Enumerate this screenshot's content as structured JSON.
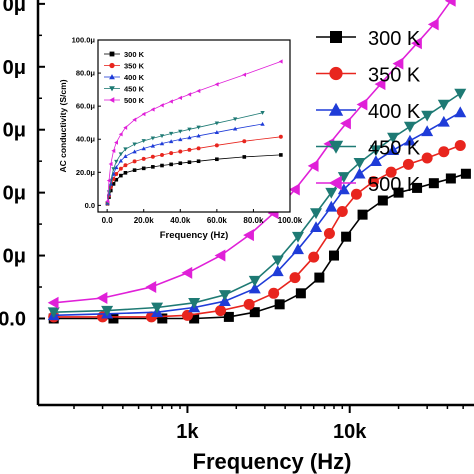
{
  "chart_data": [
    {
      "type": "line",
      "xlabel": "Frequency (Hz)",
      "ylabel": "",
      "x_scale": "log",
      "xlim": [
        120,
        60000
      ],
      "ylim": [
        -5.5e-06,
        2.05e-05
      ],
      "x_tick_labels": [
        "1k",
        "10k"
      ],
      "x_tick_values": [
        1000,
        10000
      ],
      "y_tick_labels": [
        "0.0",
        "0μ",
        "0μ",
        "0μ",
        "0μ",
        "0μ"
      ],
      "y_tick_values": [
        0,
        4e-06,
        8e-06,
        1.2e-05,
        1.6e-05,
        2e-05
      ],
      "legend_position": "top-right",
      "series": [
        {
          "name": "300 K",
          "color": "#000000",
          "marker": "square",
          "x": [
            150,
            350,
            700,
            1100,
            1800,
            2600,
            3700,
            5000,
            6500,
            8000,
            9500,
            12000,
            16000,
            20000,
            26000,
            33000,
            42000,
            52000
          ],
          "y": [
            0.0,
            0.0,
            0.0,
            0.0,
            1e-07,
            4e-07,
            9e-07,
            1.6e-06,
            2.6e-06,
            4e-06,
            5.2e-06,
            6.6e-06,
            7.5e-06,
            8e-06,
            8.3e-06,
            8.6e-06,
            8.9e-06,
            9.2e-06
          ]
        },
        {
          "name": "350 K",
          "color": "#e8251e",
          "marker": "circle",
          "x": [
            150,
            300,
            600,
            1000,
            1600,
            2400,
            3400,
            4600,
            6000,
            7500,
            9000,
            11000,
            14000,
            18000,
            23000,
            30000,
            38000,
            48000
          ],
          "y": [
            1e-07,
            1e-07,
            1e-07,
            2e-07,
            5e-07,
            9e-07,
            1.6e-06,
            2.6e-06,
            3.9e-06,
            5.4e-06,
            6.8e-06,
            7.9e-06,
            8.7e-06,
            9.3e-06,
            9.8e-06,
            1.02e-05,
            1.06e-05,
            1.1e-05
          ]
        },
        {
          "name": "400 K",
          "color": "#1f3cd8",
          "marker": "triangle-up",
          "x": [
            150,
            320,
            650,
            1100,
            1700,
            2600,
            3600,
            4800,
            6200,
            7700,
            9200,
            11500,
            14500,
            18500,
            23500,
            30000,
            38000,
            48000
          ],
          "y": [
            2e-07,
            3e-07,
            4e-07,
            7e-07,
            1.1e-06,
            1.9e-06,
            3e-06,
            4.4e-06,
            5.8e-06,
            7.1e-06,
            8.2e-06,
            9.2e-06,
            1e-05,
            1.07e-05,
            1.13e-05,
            1.19e-05,
            1.25e-05,
            1.31e-05
          ]
        },
        {
          "name": "450 K",
          "color": "#1e7a74",
          "marker": "triangle-down",
          "x": [
            150,
            320,
            650,
            1100,
            1700,
            2600,
            3600,
            4800,
            6200,
            7700,
            9200,
            11500,
            14500,
            18500,
            23500,
            30000,
            38000,
            48000
          ],
          "y": [
            4e-07,
            5e-07,
            7e-07,
            1e-06,
            1.5e-06,
            2.4e-06,
            3.7e-06,
            5.2e-06,
            6.7e-06,
            8e-06,
            9e-06,
            9.9e-06,
            1.07e-05,
            1.15e-05,
            1.22e-05,
            1.29e-05,
            1.36e-05,
            1.43e-05
          ]
        },
        {
          "name": "500 K",
          "color": "#e020d8",
          "marker": "triangle-left",
          "x": [
            150,
            300,
            600,
            1000,
            1600,
            2400,
            3400,
            4600,
            6000,
            7500,
            9500,
            12000,
            15500,
            20000,
            26000,
            33000,
            42000,
            53000
          ],
          "y": [
            1e-06,
            1.3e-06,
            2e-06,
            2.9e-06,
            4e-06,
            5.3e-06,
            6.7e-06,
            8.2e-06,
            9.7e-06,
            1.11e-05,
            1.24e-05,
            1.36e-05,
            1.49e-05,
            1.62e-05,
            1.75e-05,
            1.87e-05,
            2.02e-05,
            2.15e-05
          ]
        }
      ]
    },
    {
      "type": "line",
      "title": "",
      "xlabel": "Frequency (Hz)",
      "ylabel": "AC conductivity (S/cm)",
      "x_scale": "linear",
      "xlim": [
        -5000,
        100000
      ],
      "ylim": [
        -4e-06,
        0.0001
      ],
      "x_tick_labels": [
        "0.0",
        "20.0k",
        "40.0k",
        "60.0k",
        "80.0k",
        "100.0k"
      ],
      "x_tick_values": [
        0,
        20000,
        40000,
        60000,
        80000,
        100000
      ],
      "y_tick_labels": [
        "0.0",
        "20.0μ",
        "40.0μ",
        "60.0μ",
        "80.0μ",
        "100.0μ"
      ],
      "y_tick_values": [
        0,
        2e-05,
        4e-05,
        6e-05,
        8e-05,
        0.0001
      ],
      "legend_position": "top-left",
      "series": [
        {
          "name": "300 K",
          "color": "#000000",
          "marker": "square",
          "x": [
            200,
            1000,
            2000,
            3500,
            5000,
            7500,
            10000,
            15000,
            20000,
            25000,
            30000,
            35000,
            40000,
            45000,
            50000,
            60000,
            75000,
            95000
          ],
          "y": [
            1e-06,
            5e-06,
            9e-06,
            1.3e-05,
            1.55e-05,
            1.8e-05,
            1.97e-05,
            2.13e-05,
            2.24e-05,
            2.33e-05,
            2.41e-05,
            2.48e-05,
            2.55e-05,
            2.61e-05,
            2.67e-05,
            2.79e-05,
            2.93e-05,
            3.05e-05
          ]
        },
        {
          "name": "350 K",
          "color": "#e8251e",
          "marker": "circle",
          "x": [
            200,
            1000,
            2000,
            3500,
            5000,
            7500,
            10000,
            15000,
            20000,
            25000,
            30000,
            35000,
            40000,
            45000,
            50000,
            60000,
            75000,
            95000
          ],
          "y": [
            1.2e-06,
            6e-06,
            1.1e-05,
            1.6e-05,
            1.9e-05,
            2.22e-05,
            2.43e-05,
            2.66e-05,
            2.81e-05,
            2.94e-05,
            3.05e-05,
            3.16e-05,
            3.26e-05,
            3.36e-05,
            3.45e-05,
            3.63e-05,
            3.88e-05,
            4.15e-05
          ]
        },
        {
          "name": "400 K",
          "color": "#1f3cd8",
          "marker": "triangle-up",
          "x": [
            200,
            1000,
            2000,
            3500,
            5000,
            7500,
            10000,
            15000,
            20000,
            25000,
            30000,
            35000,
            40000,
            45000,
            50000,
            60000,
            70000,
            85000
          ],
          "y": [
            1.4e-06,
            7e-06,
            1.3e-05,
            1.9e-05,
            2.3e-05,
            2.7e-05,
            2.97e-05,
            3.25e-05,
            3.44e-05,
            3.6e-05,
            3.74e-05,
            3.87e-05,
            3.99e-05,
            4.1e-05,
            4.21e-05,
            4.42e-05,
            4.63e-05,
            4.92e-05
          ]
        },
        {
          "name": "450 K",
          "color": "#1e7a74",
          "marker": "triangle-down",
          "x": [
            200,
            1000,
            2000,
            3500,
            5000,
            7500,
            10000,
            15000,
            20000,
            25000,
            30000,
            35000,
            40000,
            45000,
            50000,
            60000,
            70000,
            85000
          ],
          "y": [
            1.6e-06,
            8e-06,
            1.5e-05,
            2.2e-05,
            2.65e-05,
            3.1e-05,
            3.4e-05,
            3.7e-05,
            3.9e-05,
            4.06e-05,
            4.2e-05,
            4.34e-05,
            4.47e-05,
            4.6e-05,
            4.72e-05,
            4.97e-05,
            5.22e-05,
            5.6e-05
          ]
        },
        {
          "name": "500 K",
          "color": "#e020d8",
          "marker": "triangle-left",
          "x": [
            200,
            1000,
            2000,
            3500,
            5000,
            7500,
            10000,
            15000,
            20000,
            25000,
            30000,
            35000,
            40000,
            45000,
            50000,
            60000,
            75000,
            95000
          ],
          "y": [
            2.5e-06,
            1.5e-05,
            2.5e-05,
            3.3e-05,
            3.8e-05,
            4.3e-05,
            4.7e-05,
            5.18e-05,
            5.52e-05,
            5.8e-05,
            6.05e-05,
            6.28e-05,
            6.5e-05,
            6.71e-05,
            6.92e-05,
            7.32e-05,
            7.9e-05,
            8.7e-05
          ]
        }
      ]
    }
  ]
}
